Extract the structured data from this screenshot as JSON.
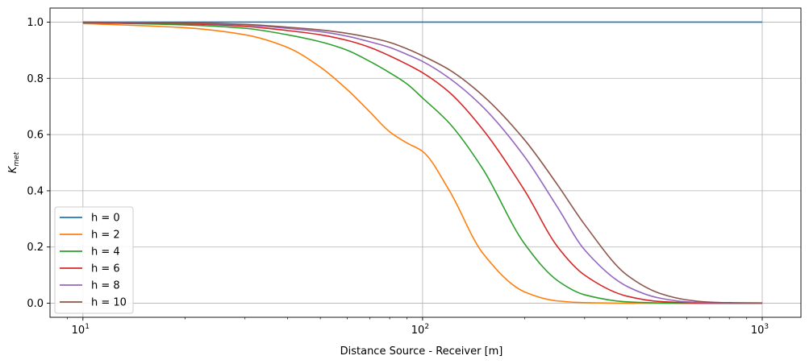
{
  "chart_data": {
    "type": "line",
    "xscale": "log",
    "xlim": [
      8,
      1300
    ],
    "ylim": [
      -0.05,
      1.05
    ],
    "xlabel": "Distance Source - Receiver [m]",
    "ylabel": {
      "base": "K",
      "sub": "met"
    },
    "grid": true,
    "legend_position": "lower-left",
    "x_major_ticks": [
      {
        "value": 10,
        "base": "10",
        "exp": "1"
      },
      {
        "value": 100,
        "base": "10",
        "exp": "2"
      },
      {
        "value": 1000,
        "base": "10",
        "exp": "3"
      }
    ],
    "y_ticks": [
      {
        "value": 0.0,
        "label": "0.0"
      },
      {
        "value": 0.2,
        "label": "0.2"
      },
      {
        "value": 0.4,
        "label": "0.4"
      },
      {
        "value": 0.6,
        "label": "0.6"
      },
      {
        "value": 0.8,
        "label": "0.8"
      },
      {
        "value": 1.0,
        "label": "1.0"
      }
    ],
    "x": [
      10,
      20,
      30,
      40,
      50,
      60,
      70,
      80,
      90,
      100,
      120,
      150,
      200,
      250,
      300,
      400,
      500,
      600,
      700,
      800,
      1000
    ],
    "series": [
      {
        "name": "h = 0",
        "color": "#1f77b4",
        "values": [
          1.0,
          1.0,
          1.0,
          1.0,
          1.0,
          1.0,
          1.0,
          1.0,
          1.0,
          1.0,
          1.0,
          1.0,
          1.0,
          1.0,
          1.0,
          1.0,
          1.0,
          1.0,
          1.0,
          1.0,
          1.0
        ]
      },
      {
        "name": "h = 2",
        "color": "#ff7f0e",
        "values": [
          0.995,
          0.98,
          0.955,
          0.91,
          0.84,
          0.76,
          0.68,
          0.61,
          0.57,
          0.54,
          0.4,
          0.18,
          0.04,
          0.008,
          0.002,
          0.0,
          0.0,
          0.0,
          0.0,
          0.0,
          0.0
        ]
      },
      {
        "name": "h = 4",
        "color": "#2ca02c",
        "values": [
          0.998,
          0.99,
          0.978,
          0.955,
          0.93,
          0.9,
          0.86,
          0.82,
          0.78,
          0.73,
          0.64,
          0.48,
          0.21,
          0.08,
          0.03,
          0.005,
          0.001,
          0.0,
          0.0,
          0.0,
          0.0
        ]
      },
      {
        "name": "h = 6",
        "color": "#d62728",
        "values": [
          0.999,
          0.994,
          0.985,
          0.97,
          0.955,
          0.935,
          0.91,
          0.88,
          0.85,
          0.82,
          0.75,
          0.62,
          0.4,
          0.2,
          0.1,
          0.025,
          0.006,
          0.002,
          0.0,
          0.0,
          0.0
        ]
      },
      {
        "name": "h = 8",
        "color": "#9467bd",
        "values": [
          1.0,
          0.996,
          0.99,
          0.978,
          0.966,
          0.95,
          0.93,
          0.91,
          0.885,
          0.86,
          0.8,
          0.7,
          0.52,
          0.34,
          0.19,
          0.06,
          0.018,
          0.005,
          0.002,
          0.001,
          0.0
        ]
      },
      {
        "name": "h = 10",
        "color": "#8c564b",
        "values": [
          1.0,
          0.997,
          0.992,
          0.982,
          0.972,
          0.96,
          0.945,
          0.928,
          0.905,
          0.88,
          0.83,
          0.74,
          0.58,
          0.42,
          0.28,
          0.1,
          0.035,
          0.012,
          0.004,
          0.002,
          0.001
        ]
      }
    ]
  }
}
